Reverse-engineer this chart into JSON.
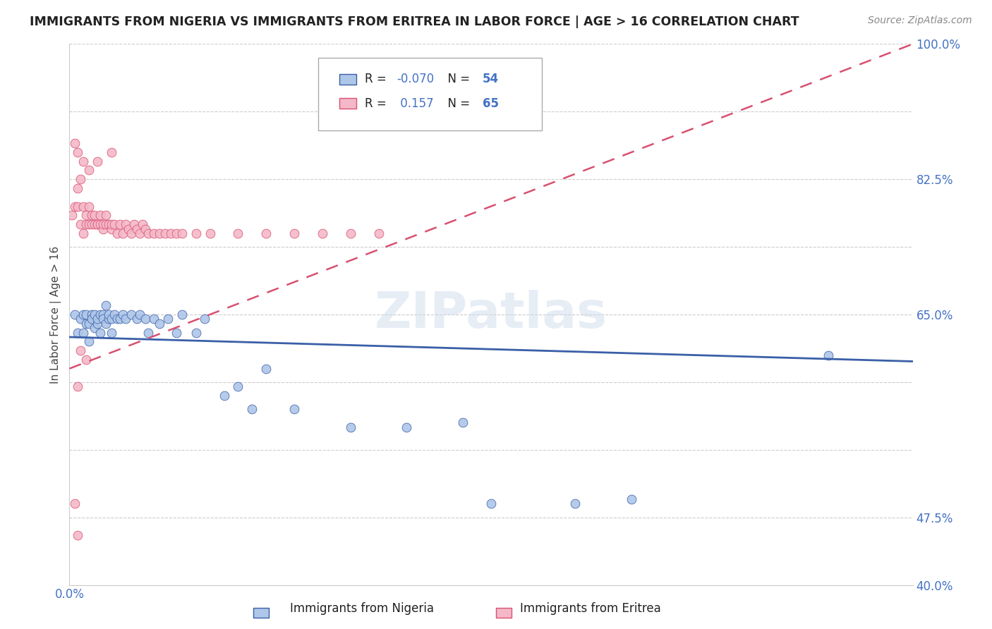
{
  "title": "IMMIGRANTS FROM NIGERIA VS IMMIGRANTS FROM ERITREA IN LABOR FORCE | AGE > 16 CORRELATION CHART",
  "source": "Source: ZipAtlas.com",
  "ylabel": "In Labor Force | Age > 16",
  "legend_label1": "Immigrants from Nigeria",
  "legend_label2": "Immigrants from Eritrea",
  "R1": -0.07,
  "N1": 54,
  "R2": 0.157,
  "N2": 65,
  "color1": "#aec6e8",
  "color2": "#f4b8c8",
  "line_color1": "#3a5fa8",
  "line_color2": "#d85070",
  "xmin": 0.0,
  "xmax": 0.3,
  "ymin": 0.4,
  "ymax": 1.0,
  "ytick_vals": [
    0.4,
    0.475,
    0.55,
    0.625,
    0.7,
    0.775,
    0.85,
    0.925,
    1.0
  ],
  "ytick_labels": [
    "40.0%",
    "47.5%",
    "",
    "",
    "65.0%",
    "",
    "82.5%",
    "",
    "100.0%"
  ],
  "xtick_vals": [
    0.0,
    0.05,
    0.1,
    0.15,
    0.2,
    0.25,
    0.3
  ],
  "xtick_labels": [
    "0.0%",
    "",
    "",
    "",
    "",
    "",
    ""
  ],
  "nigeria_x": [
    0.002,
    0.003,
    0.004,
    0.005,
    0.005,
    0.006,
    0.006,
    0.007,
    0.007,
    0.008,
    0.008,
    0.009,
    0.009,
    0.01,
    0.01,
    0.011,
    0.011,
    0.012,
    0.012,
    0.013,
    0.013,
    0.014,
    0.014,
    0.015,
    0.015,
    0.016,
    0.017,
    0.018,
    0.019,
    0.02,
    0.022,
    0.024,
    0.025,
    0.027,
    0.028,
    0.03,
    0.032,
    0.035,
    0.038,
    0.04,
    0.045,
    0.048,
    0.055,
    0.06,
    0.065,
    0.07,
    0.08,
    0.1,
    0.12,
    0.14,
    0.15,
    0.18,
    0.2,
    0.27
  ],
  "nigeria_y": [
    0.7,
    0.68,
    0.695,
    0.68,
    0.7,
    0.69,
    0.7,
    0.67,
    0.69,
    0.7,
    0.695,
    0.685,
    0.7,
    0.69,
    0.695,
    0.7,
    0.68,
    0.7,
    0.695,
    0.71,
    0.69,
    0.695,
    0.7,
    0.695,
    0.68,
    0.7,
    0.695,
    0.695,
    0.7,
    0.695,
    0.7,
    0.695,
    0.7,
    0.695,
    0.68,
    0.695,
    0.69,
    0.695,
    0.68,
    0.7,
    0.68,
    0.695,
    0.61,
    0.62,
    0.595,
    0.64,
    0.595,
    0.575,
    0.575,
    0.58,
    0.49,
    0.49,
    0.495,
    0.655
  ],
  "eritrea_x": [
    0.001,
    0.002,
    0.003,
    0.003,
    0.004,
    0.004,
    0.005,
    0.005,
    0.006,
    0.006,
    0.007,
    0.007,
    0.008,
    0.008,
    0.009,
    0.009,
    0.01,
    0.01,
    0.011,
    0.011,
    0.012,
    0.012,
    0.013,
    0.013,
    0.014,
    0.015,
    0.015,
    0.016,
    0.017,
    0.018,
    0.019,
    0.02,
    0.021,
    0.022,
    0.023,
    0.024,
    0.025,
    0.026,
    0.027,
    0.028,
    0.03,
    0.032,
    0.034,
    0.036,
    0.038,
    0.04,
    0.045,
    0.05,
    0.06,
    0.07,
    0.08,
    0.09,
    0.1,
    0.11,
    0.002,
    0.003,
    0.005,
    0.007,
    0.01,
    0.015,
    0.003,
    0.004,
    0.006,
    0.002,
    0.003
  ],
  "eritrea_y": [
    0.81,
    0.82,
    0.82,
    0.84,
    0.8,
    0.85,
    0.79,
    0.82,
    0.8,
    0.81,
    0.8,
    0.82,
    0.8,
    0.81,
    0.8,
    0.81,
    0.8,
    0.8,
    0.8,
    0.81,
    0.795,
    0.8,
    0.8,
    0.81,
    0.8,
    0.795,
    0.8,
    0.8,
    0.79,
    0.8,
    0.79,
    0.8,
    0.795,
    0.79,
    0.8,
    0.795,
    0.79,
    0.8,
    0.795,
    0.79,
    0.79,
    0.79,
    0.79,
    0.79,
    0.79,
    0.79,
    0.79,
    0.79,
    0.79,
    0.79,
    0.79,
    0.79,
    0.79,
    0.79,
    0.89,
    0.88,
    0.87,
    0.86,
    0.87,
    0.88,
    0.62,
    0.66,
    0.65,
    0.49,
    0.455
  ],
  "trend1_x": [
    0.0,
    0.3
  ],
  "trend1_y": [
    0.675,
    0.648
  ],
  "trend2_x": [
    0.0,
    0.3
  ],
  "trend2_y": [
    0.64,
    1.0
  ]
}
